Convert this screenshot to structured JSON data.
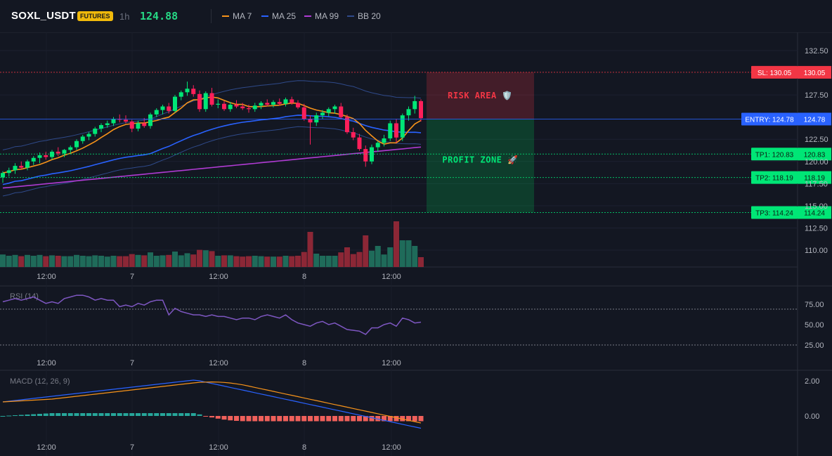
{
  "header": {
    "symbol": "SOXL_USDT",
    "badge": "FUTURES",
    "interval": "1h",
    "last_price": "124.88",
    "indicators": [
      {
        "label": "MA 7",
        "color": "#f7931a"
      },
      {
        "label": "MA 25",
        "color": "#2962ff"
      },
      {
        "label": "MA 99",
        "color": "#b03bd3"
      },
      {
        "label": "BB 20",
        "color": "#2f4a8a"
      }
    ]
  },
  "price_axis": {
    "ticks": [
      "132.50",
      "127.50",
      "122.50",
      "120.00",
      "117.50",
      "115.00",
      "112.50",
      "110.00"
    ]
  },
  "time_axis": {
    "labels": [
      "12:00",
      "7",
      "12:00",
      "8",
      "12:00"
    ]
  },
  "levels": {
    "sl": {
      "tag": "SL: 130.05",
      "value": "130.05",
      "color": "#f23645"
    },
    "entry": {
      "tag": "ENTRY: 124.78",
      "value": "124.78",
      "color": "#2962ff"
    },
    "tp1": {
      "tag": "TP1: 120.83",
      "value": "120.83",
      "color": "#00e676"
    },
    "tp2": {
      "tag": "TP2: 118.19",
      "value": "118.19",
      "color": "#00e676"
    },
    "tp3": {
      "tag": "TP3: 114.24",
      "value": "114.24",
      "color": "#00e676"
    }
  },
  "zones": {
    "risk_label": "RISK AREA 🛡️",
    "profit_label": "PROFIT ZONE 🚀"
  },
  "rsi": {
    "label": "RSI (14)",
    "ticks": [
      "75.00",
      "50.00",
      "25.00"
    ],
    "color": "#7e57c2"
  },
  "macd": {
    "label": "MACD (12, 26, 9)",
    "ticks": [
      "2.00",
      "0.00"
    ]
  },
  "chart_data": {
    "type": "candlestick",
    "x_labels": [
      "12:00",
      "7",
      "12:00",
      "8",
      "12:00"
    ],
    "ohlc": [
      [
        118.2,
        118.9,
        117.6,
        118.7
      ],
      [
        118.7,
        119.3,
        118.3,
        119.0
      ],
      [
        119.0,
        119.8,
        118.6,
        119.5
      ],
      [
        119.5,
        120.0,
        119.1,
        119.3
      ],
      [
        119.3,
        120.2,
        119.0,
        120.0
      ],
      [
        120.0,
        120.6,
        119.6,
        120.4
      ],
      [
        120.4,
        121.0,
        119.8,
        120.7
      ],
      [
        120.7,
        121.1,
        120.2,
        120.5
      ],
      [
        120.5,
        121.3,
        120.2,
        121.1
      ],
      [
        121.1,
        121.6,
        120.6,
        120.9
      ],
      [
        120.9,
        121.4,
        120.5,
        121.3
      ],
      [
        121.3,
        121.8,
        120.9,
        121.6
      ],
      [
        121.6,
        122.5,
        121.3,
        122.3
      ],
      [
        122.3,
        123.0,
        122.0,
        122.8
      ],
      [
        122.8,
        123.3,
        122.4,
        123.1
      ],
      [
        123.1,
        123.9,
        122.8,
        123.7
      ],
      [
        123.7,
        124.3,
        123.3,
        124.1
      ],
      [
        124.1,
        124.6,
        123.8,
        124.3
      ],
      [
        124.3,
        125.0,
        124.0,
        124.8
      ],
      [
        124.8,
        125.3,
        124.4,
        124.7
      ],
      [
        124.7,
        125.2,
        124.3,
        124.5
      ],
      [
        124.5,
        124.7,
        123.3,
        123.7
      ],
      [
        123.7,
        124.6,
        123.4,
        124.3
      ],
      [
        124.3,
        124.9,
        123.8,
        124.0
      ],
      [
        124.0,
        125.5,
        123.7,
        125.3
      ],
      [
        125.3,
        126.0,
        125.0,
        125.8
      ],
      [
        125.8,
        126.4,
        125.3,
        126.2
      ],
      [
        126.2,
        126.6,
        125.4,
        125.7
      ],
      [
        125.7,
        127.5,
        125.5,
        127.3
      ],
      [
        127.3,
        128.0,
        126.9,
        127.8
      ],
      [
        127.8,
        129.0,
        127.4,
        128.2
      ],
      [
        128.2,
        128.6,
        127.3,
        127.6
      ],
      [
        127.6,
        128.0,
        125.6,
        125.9
      ],
      [
        125.9,
        127.9,
        125.6,
        127.7
      ],
      [
        127.7,
        128.3,
        126.2,
        126.4
      ],
      [
        126.4,
        127.0,
        126.0,
        126.5
      ],
      [
        126.5,
        126.8,
        125.7,
        125.9
      ],
      [
        125.9,
        126.7,
        125.6,
        126.4
      ],
      [
        126.4,
        126.9,
        126.0,
        126.2
      ],
      [
        126.2,
        126.6,
        125.8,
        126.0
      ],
      [
        126.0,
        126.4,
        125.5,
        125.9
      ],
      [
        125.9,
        126.6,
        125.6,
        126.3
      ],
      [
        126.3,
        126.8,
        125.9,
        126.6
      ],
      [
        126.6,
        127.0,
        126.2,
        126.4
      ],
      [
        126.4,
        126.9,
        126.1,
        126.7
      ],
      [
        126.7,
        127.1,
        126.3,
        126.5
      ],
      [
        126.5,
        127.2,
        126.2,
        127.0
      ],
      [
        127.0,
        127.3,
        126.4,
        126.6
      ],
      [
        126.6,
        126.9,
        125.9,
        126.1
      ],
      [
        126.1,
        126.5,
        124.6,
        124.8
      ],
      [
        124.8,
        125.2,
        121.9,
        124.4
      ],
      [
        124.4,
        125.5,
        124.0,
        125.2
      ],
      [
        125.2,
        125.8,
        124.8,
        125.5
      ],
      [
        125.5,
        126.1,
        125.1,
        125.9
      ],
      [
        125.9,
        126.4,
        125.4,
        126.2
      ],
      [
        126.2,
        126.6,
        124.8,
        125.0
      ],
      [
        125.0,
        125.3,
        123.1,
        123.3
      ],
      [
        123.3,
        123.8,
        122.4,
        122.7
      ],
      [
        122.7,
        123.1,
        121.2,
        121.4
      ],
      [
        121.4,
        121.8,
        119.4,
        120.0
      ],
      [
        120.0,
        121.9,
        119.7,
        121.6
      ],
      [
        121.6,
        122.3,
        121.1,
        122.1
      ],
      [
        122.1,
        123.0,
        121.7,
        122.6
      ],
      [
        122.6,
        124.6,
        122.3,
        124.3
      ],
      [
        124.3,
        124.8,
        122.1,
        122.7
      ],
      [
        122.7,
        125.4,
        122.3,
        125.2
      ],
      [
        125.2,
        126.2,
        124.6,
        125.9
      ],
      [
        125.9,
        127.4,
        125.4,
        126.8
      ],
      [
        126.8,
        127.0,
        124.5,
        124.88
      ]
    ],
    "volume_scale_note": "relative",
    "rsi_range": [
      25,
      90
    ],
    "macd_range": [
      -1.0,
      2.2
    ]
  }
}
